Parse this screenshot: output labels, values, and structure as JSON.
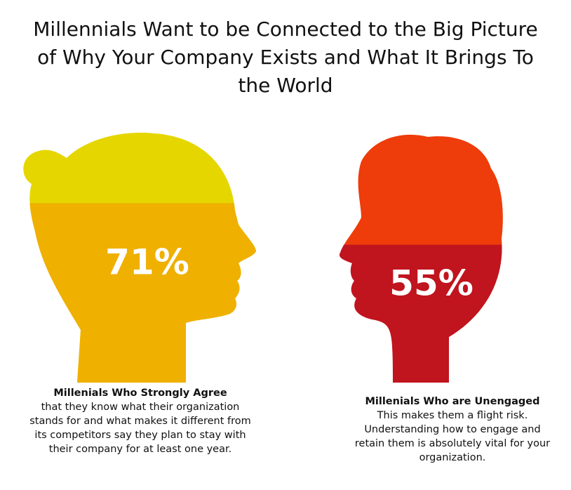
{
  "chart_data": {
    "type": "head-fill",
    "title": "Millennials Want to be Connected to the Big Picture of Why Your Company Exists and What It Brings To the World",
    "categories": [
      "Millenials Who Strongly Agree",
      "Millenials Who are Unengaged"
    ],
    "descriptions": [
      "that they know what their organization stands for and what makes it different from its competitors say they plan to stay with their company for at least one year.",
      "This makes them a flight risk. Understanding how to engage and retain them is absolutely vital for your organization."
    ],
    "values": [
      71,
      55
    ],
    "value_labels": [
      "71%",
      "55%"
    ],
    "colors": [
      "#efb000",
      "#c0141f"
    ],
    "empty_colors": [
      "#e5d600",
      "#ee3c0a"
    ]
  }
}
